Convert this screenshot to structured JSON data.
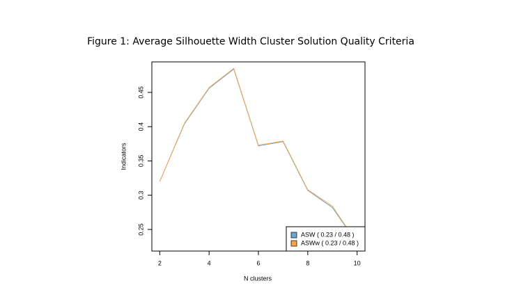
{
  "chart_data": {
    "type": "line",
    "title": "Figure 1: Average Silhouette Width Cluster Solution Quality Criteria",
    "x_label": "N clusters",
    "y_label": "Indicators",
    "x": [
      2,
      3,
      4,
      5,
      6,
      7,
      8,
      9,
      10
    ],
    "series": [
      {
        "name": "ASW ( 0.23 / 0.48 )",
        "color": "#6fa3d6",
        "values": [
          0.32,
          0.404,
          0.456,
          0.484,
          0.372,
          0.378,
          0.307,
          0.282,
          0.23
        ]
      },
      {
        "name": "ASWw ( 0.23 / 0.48 )",
        "color": "#f5a54a",
        "values": [
          0.32,
          0.405,
          0.457,
          0.485,
          0.373,
          0.379,
          0.308,
          0.284,
          0.23
        ]
      }
    ],
    "xlim": [
      1.68,
      10.32
    ],
    "xticks": [
      2,
      4,
      6,
      8,
      10
    ],
    "ylim": [
      0.2185,
      0.4945
    ],
    "yticks": [
      0.25,
      0.3,
      0.35,
      0.4,
      0.45
    ],
    "legend": "bottom-right"
  }
}
